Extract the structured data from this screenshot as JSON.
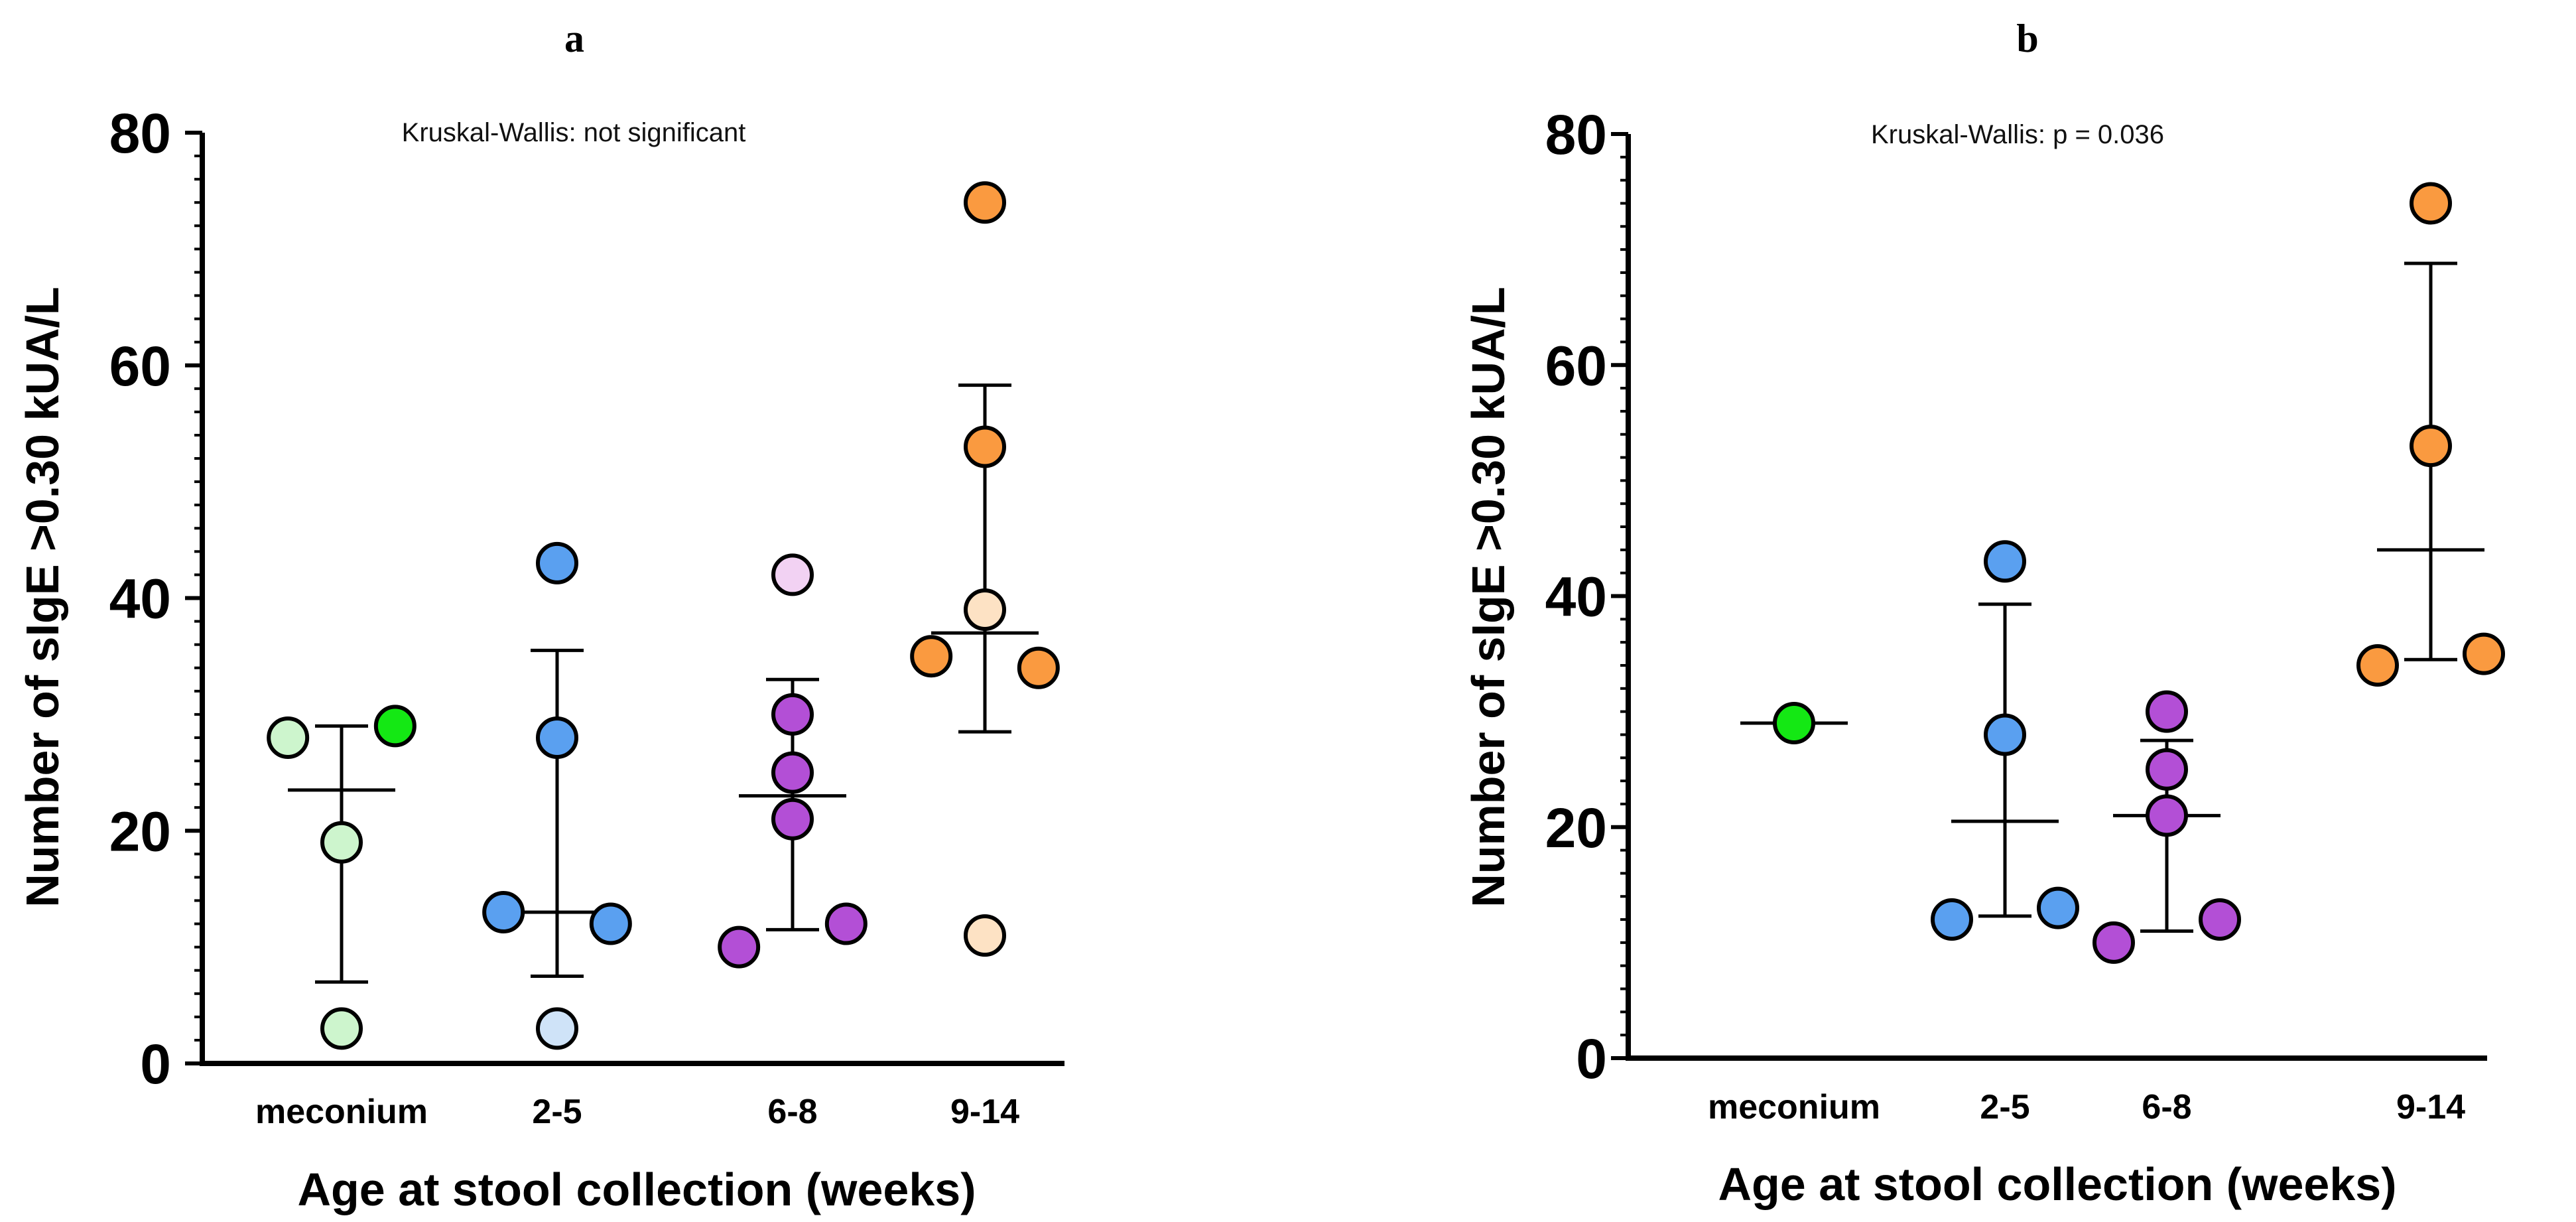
{
  "chart_data": [
    {
      "type": "scatter",
      "panel_label": "a",
      "annotation": "Kruskal-Wallis: not significant",
      "ylabel": "Number of sIgE >0.30 kUA/L",
      "xlabel": "Age at stool collection (weeks)",
      "ylim": [
        0,
        80
      ],
      "yticks": [
        "0",
        "20",
        "40",
        "60",
        "80"
      ],
      "categories": [
        "meconium",
        "2-5",
        "6-8",
        "9-14"
      ],
      "groups": [
        {
          "category": "meconium",
          "summary": {
            "center": 23.5,
            "lower": 7,
            "upper": 29
          },
          "points": [
            {
              "dx": -0.25,
              "y": 28,
              "color": "#cdf5cd"
            },
            {
              "dx": 0.25,
              "y": 29,
              "color": "#14e814"
            },
            {
              "dx": 0.0,
              "y": 19,
              "color": "#cdf5cd"
            },
            {
              "dx": 0.0,
              "y": 3,
              "color": "#cdf5cd"
            }
          ]
        },
        {
          "category": "2-5",
          "summary": {
            "center": 13,
            "lower": 7.5,
            "upper": 35.5
          },
          "points": [
            {
              "dx": 0.0,
              "y": 43,
              "color": "#5aa0f0"
            },
            {
              "dx": 0.0,
              "y": 28,
              "color": "#5aa0f0"
            },
            {
              "dx": -0.25,
              "y": 13,
              "color": "#5aa0f0"
            },
            {
              "dx": 0.25,
              "y": 12,
              "color": "#5aa0f0"
            },
            {
              "dx": 0.0,
              "y": 3,
              "color": "#cfe3f8"
            }
          ]
        },
        {
          "category": "6-8",
          "summary": {
            "center": 23,
            "lower": 11.5,
            "upper": 33
          },
          "points": [
            {
              "dx": 0.0,
              "y": 42,
              "color": "#f2d2f3"
            },
            {
              "dx": 0.0,
              "y": 30,
              "color": "#b34fd6"
            },
            {
              "dx": 0.0,
              "y": 25,
              "color": "#b34fd6"
            },
            {
              "dx": 0.0,
              "y": 21,
              "color": "#b34fd6"
            },
            {
              "dx": 0.25,
              "y": 12,
              "color": "#b34fd6"
            },
            {
              "dx": -0.25,
              "y": 10,
              "color": "#b34fd6"
            }
          ]
        },
        {
          "category": "9-14",
          "summary": {
            "center": 37,
            "lower": 28.5,
            "upper": 58.3
          },
          "points": [
            {
              "dx": 0.0,
              "y": 74,
              "color": "#fa9a40"
            },
            {
              "dx": 0.0,
              "y": 53,
              "color": "#fa9a40"
            },
            {
              "dx": 0.0,
              "y": 39,
              "color": "#fde2c4"
            },
            {
              "dx": -0.25,
              "y": 35,
              "color": "#fa9a40"
            },
            {
              "dx": 0.25,
              "y": 34,
              "color": "#fa9a40"
            },
            {
              "dx": 0.0,
              "y": 11,
              "color": "#fde2c4"
            }
          ]
        }
      ]
    },
    {
      "type": "scatter",
      "panel_label": "b",
      "annotation": "Kruskal-Wallis: p = 0.036",
      "ylabel": "Number of sIgE >0.30 kUA/L",
      "xlabel": "Age at stool collection (weeks)",
      "ylim": [
        0,
        80
      ],
      "yticks": [
        "0",
        "20",
        "40",
        "60",
        "80"
      ],
      "categories": [
        "meconium",
        "2-5",
        "6-8",
        "9-14"
      ],
      "groups": [
        {
          "category": "meconium",
          "summary": {
            "center": 29,
            "lower": 29,
            "upper": 29
          },
          "points": [
            {
              "dx": 0.0,
              "y": 29,
              "color": "#14e814"
            }
          ]
        },
        {
          "category": "2-5",
          "summary": {
            "center": 20.5,
            "lower": 12.3,
            "upper": 39.3
          },
          "points": [
            {
              "dx": 0.0,
              "y": 43,
              "color": "#5aa0f0"
            },
            {
              "dx": 0.0,
              "y": 28,
              "color": "#5aa0f0"
            },
            {
              "dx": 0.25,
              "y": 13,
              "color": "#5aa0f0"
            },
            {
              "dx": -0.25,
              "y": 12,
              "color": "#5aa0f0"
            }
          ]
        },
        {
          "category": "6-8",
          "summary": {
            "center": 21,
            "lower": 11,
            "upper": 27.5
          },
          "points": [
            {
              "dx": 0.0,
              "y": 30,
              "color": "#b34fd6"
            },
            {
              "dx": 0.0,
              "y": 25,
              "color": "#b34fd6"
            },
            {
              "dx": 0.0,
              "y": 21,
              "color": "#b34fd6"
            },
            {
              "dx": 0.25,
              "y": 12,
              "color": "#b34fd6"
            },
            {
              "dx": -0.25,
              "y": 10,
              "color": "#b34fd6"
            }
          ]
        },
        {
          "category": "9-14",
          "summary": {
            "center": 44,
            "lower": 34.5,
            "upper": 68.8
          },
          "points": [
            {
              "dx": 0.0,
              "y": 74,
              "color": "#fa9a40"
            },
            {
              "dx": 0.0,
              "y": 53,
              "color": "#fa9a40"
            },
            {
              "dx": 0.25,
              "y": 35,
              "color": "#fa9a40"
            },
            {
              "dx": -0.25,
              "y": 34,
              "color": "#fa9a40"
            }
          ]
        }
      ]
    }
  ]
}
